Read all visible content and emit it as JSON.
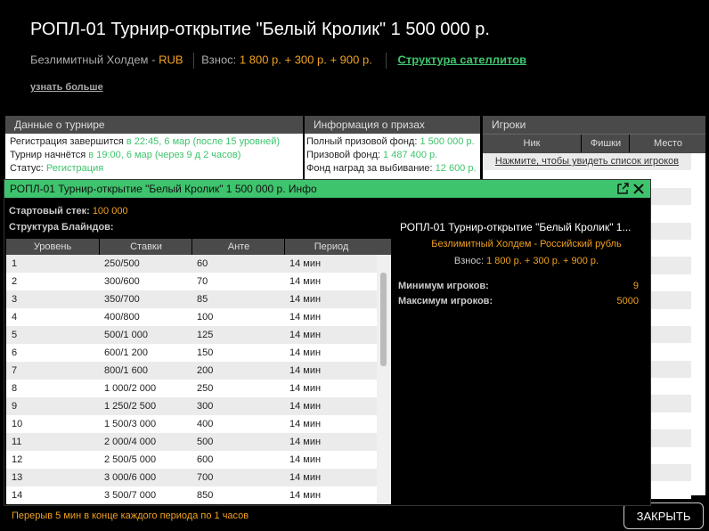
{
  "header": {
    "title": "РОПЛ-01 Турнир-открытие \"Белый Кролик\" 1 500 000 р.",
    "game": "Безлимитный Холдем - ",
    "currency": "RUB",
    "fee_label": "Взнос: ",
    "fee": "1 800 р. + 300 р. + 900 р.",
    "satellites_link": "Структура сателлитов",
    "learn_more": "узнать больше"
  },
  "panels": {
    "tournament": {
      "title": "Данные о турнире",
      "rows": [
        [
          "Регистрация завершится ",
          "в 22:45, 6 мар (после 15 уровней)"
        ],
        [
          "Турнир начнётся ",
          "в 19:00, 6 мар (через 9 д 2 часов)"
        ],
        [
          "Статус: ",
          "Регистрация"
        ]
      ]
    },
    "prizes": {
      "title": "Информация о призах",
      "rows": [
        [
          "Полный призовой фонд: ",
          "1 500 000 р."
        ],
        [
          "Призовой фонд: ",
          "1 487 400 р."
        ],
        [
          "Фонд наград за выбивание: ",
          "12 600 р."
        ]
      ]
    },
    "players": {
      "title": "Игроки",
      "columns": [
        "Ник",
        "Фишки",
        "Место"
      ],
      "link": "Нажмите, чтобы увидеть список игроков"
    }
  },
  "close_button": "ЗАКРЫТЬ",
  "modal": {
    "title": "РОПЛ-01 Турнир-открытие \"Белый Кролик\" 1 500 000 р. Инфо",
    "start_stack_label": "Стартовый стек: ",
    "start_stack": "100 000",
    "blinds_label": "Структура Блайндов:",
    "columns": [
      "Уровень",
      "Ставки",
      "Анте",
      "Период"
    ],
    "rows": [
      [
        "1",
        "250/500",
        "60",
        "14 мин"
      ],
      [
        "2",
        "300/600",
        "70",
        "14 мин"
      ],
      [
        "3",
        "350/700",
        "85",
        "14 мин"
      ],
      [
        "4",
        "400/800",
        "100",
        "14 мин"
      ],
      [
        "5",
        "500/1 000",
        "125",
        "14 мин"
      ],
      [
        "6",
        "600/1 200",
        "150",
        "14 мин"
      ],
      [
        "7",
        "800/1 600",
        "200",
        "14 мин"
      ],
      [
        "8",
        "1 000/2 000",
        "250",
        "14 мин"
      ],
      [
        "9",
        "1 250/2 500",
        "300",
        "14 мин"
      ],
      [
        "10",
        "1 500/3 000",
        "400",
        "14 мин"
      ],
      [
        "11",
        "2 000/4 000",
        "500",
        "14 мин"
      ],
      [
        "12",
        "2 500/5 000",
        "600",
        "14 мин"
      ],
      [
        "13",
        "3 000/6 000",
        "700",
        "14 мин"
      ],
      [
        "14",
        "3 500/7 000",
        "850",
        "14 мин"
      ]
    ],
    "info": {
      "title": "РОПЛ-01 Турнир-открытие \"Белый Кролик\" 1...",
      "game": "Безлимитный Холдем - Российский рубль",
      "fee_label": "Взнос:",
      "fee": "1 800 р. + 300 р. + 900 р.",
      "min_label": "Минимум игроков:",
      "min": "9",
      "max_label": "Максимум игроков:",
      "max": "5000"
    },
    "footer": "Перерыв 5 мин в конце каждого периода по 1 часов"
  }
}
